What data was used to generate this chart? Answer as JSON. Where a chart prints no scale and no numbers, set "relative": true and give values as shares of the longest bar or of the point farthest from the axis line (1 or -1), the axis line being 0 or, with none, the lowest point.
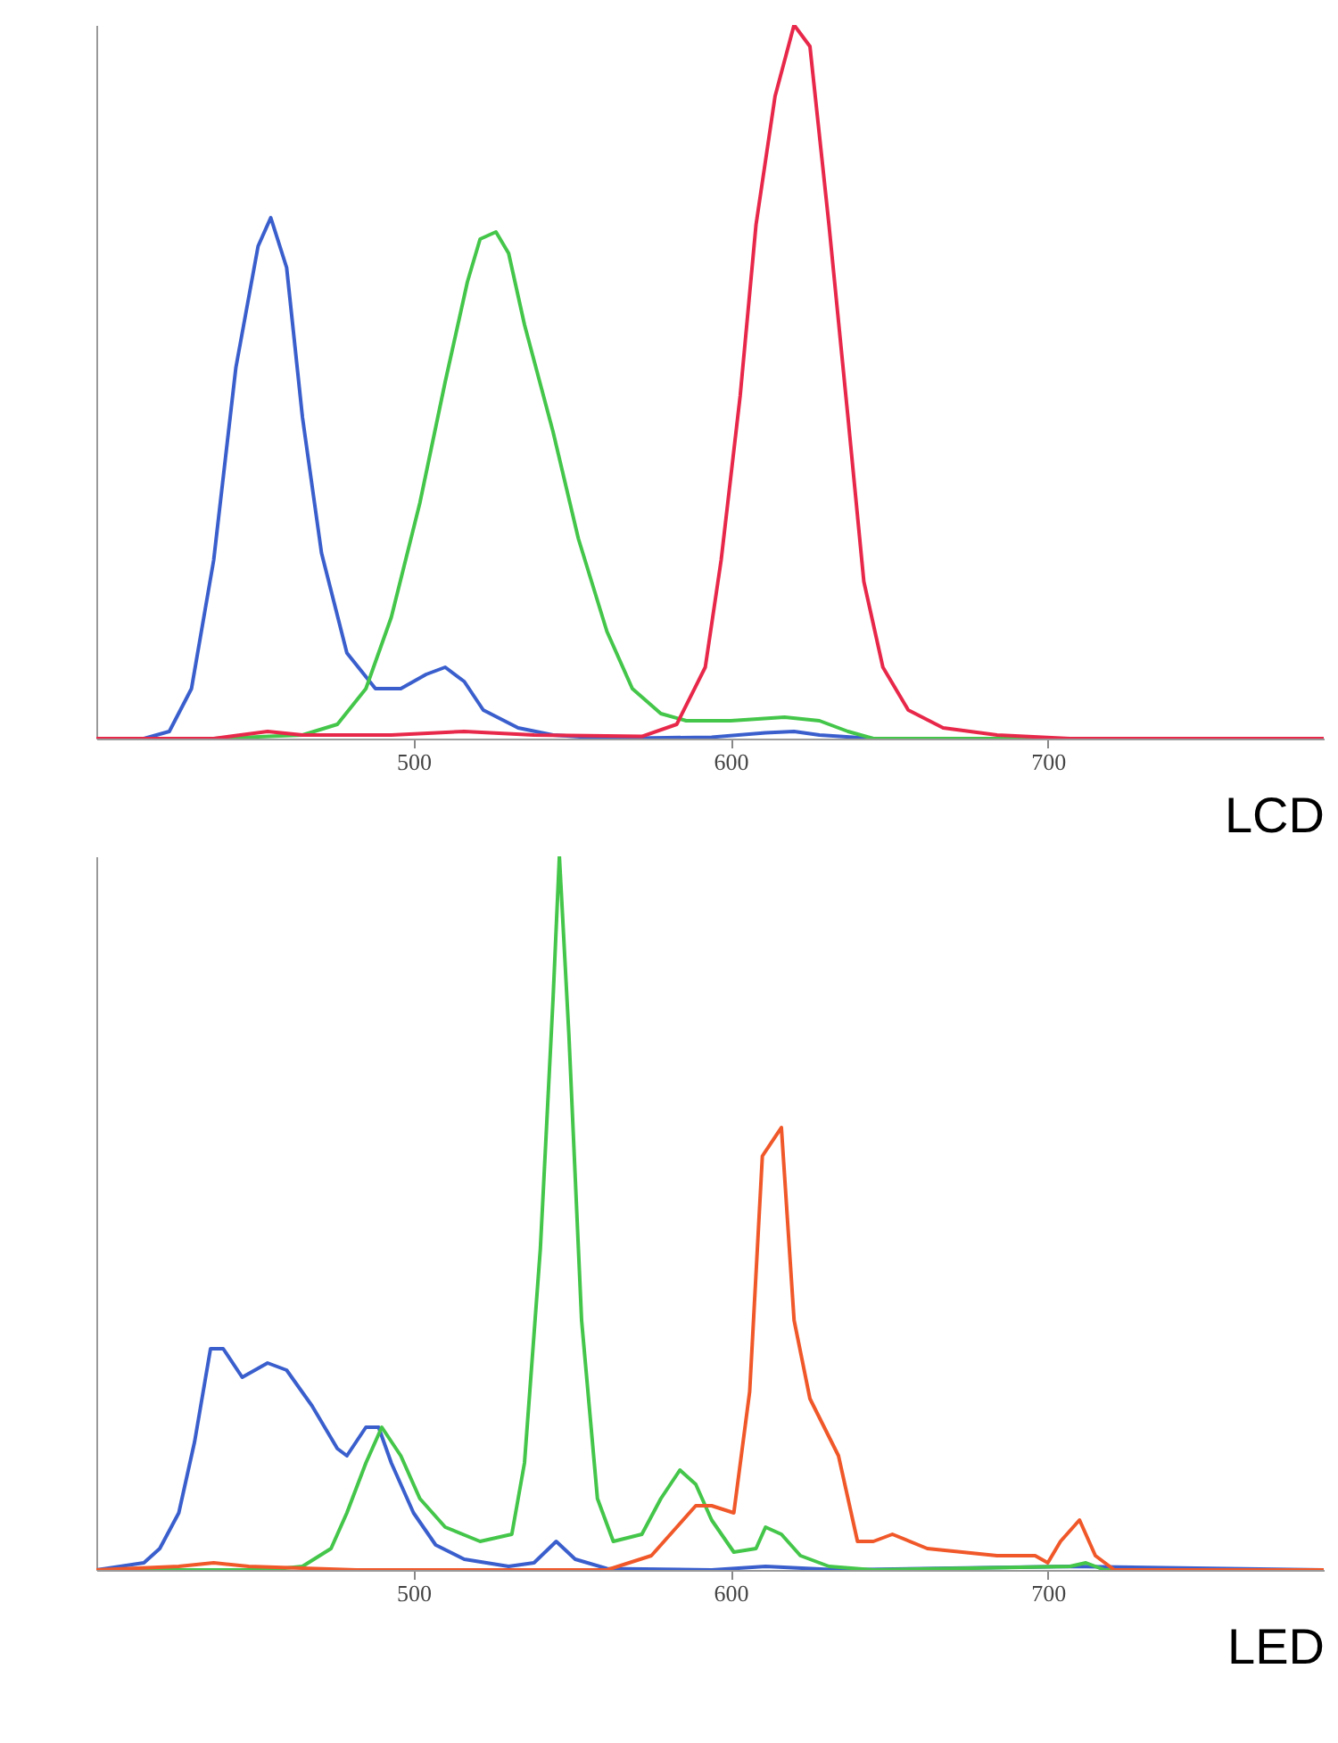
{
  "chart_data": [
    {
      "type": "line",
      "relative": true,
      "xlabel": "LCD",
      "xlim": [
        400,
        787
      ],
      "xticks": [
        500,
        600,
        700
      ],
      "tick_labels": "x",
      "grid": false,
      "legend": false,
      "marker": "none",
      "line_style": "solid",
      "series": [
        {
          "color": "#3a5fcd",
          "x": [
            400,
            415,
            423,
            430,
            437,
            444,
            451,
            455,
            460,
            465,
            471,
            479,
            488,
            496,
            504,
            510,
            516,
            522,
            533,
            544,
            561,
            594,
            611,
            620,
            628,
            645,
            787
          ],
          "values": [
            0,
            0,
            0.01,
            0.07,
            0.25,
            0.52,
            0.69,
            0.73,
            0.66,
            0.45,
            0.26,
            0.12,
            0.07,
            0.07,
            0.09,
            0.1,
            0.08,
            0.04,
            0.015,
            0.005,
            0,
            0.002,
            0.008,
            0.01,
            0.005,
            0,
            0
          ]
        },
        {
          "color": "#44c64a",
          "x": [
            400,
            437,
            465,
            476,
            485,
            493,
            502,
            510,
            517,
            521,
            526,
            530,
            535,
            544,
            552,
            561,
            569,
            578,
            586,
            600,
            617,
            628,
            637,
            645,
            787
          ],
          "values": [
            0,
            0,
            0.005,
            0.02,
            0.07,
            0.17,
            0.33,
            0.5,
            0.64,
            0.7,
            0.71,
            0.68,
            0.58,
            0.43,
            0.28,
            0.15,
            0.07,
            0.035,
            0.025,
            0.025,
            0.03,
            0.025,
            0.01,
            0,
            0
          ]
        },
        {
          "color": "#e8284a",
          "x": [
            400,
            437,
            454,
            465,
            493,
            516,
            538,
            572,
            583,
            592,
            597,
            603,
            608,
            614,
            620,
            625,
            631,
            637,
            642,
            648,
            656,
            667,
            684,
            707,
            787
          ],
          "values": [
            0,
            0,
            0.01,
            0.005,
            0.005,
            0.01,
            0.005,
            0.003,
            0.02,
            0.1,
            0.25,
            0.48,
            0.72,
            0.9,
            1,
            0.97,
            0.72,
            0.45,
            0.22,
            0.1,
            0.04,
            0.015,
            0.005,
            0,
            0
          ]
        }
      ]
    },
    {
      "type": "line",
      "relative": true,
      "xlabel": "LED",
      "xlim": [
        400,
        787
      ],
      "xticks": [
        500,
        600,
        700
      ],
      "tick_labels": "x",
      "grid": false,
      "legend": false,
      "marker": "none",
      "line_style": "solid",
      "series": [
        {
          "color": "#3a5fcd",
          "x": [
            400,
            415,
            420,
            426,
            431,
            436,
            440,
            446,
            454,
            460,
            468,
            476,
            479,
            485,
            489,
            493,
            500,
            507,
            516,
            530,
            538,
            545,
            551,
            561,
            594,
            611,
            634,
            707,
            787
          ],
          "values": [
            0,
            0.01,
            0.03,
            0.08,
            0.18,
            0.31,
            0.31,
            0.27,
            0.29,
            0.28,
            0.23,
            0.17,
            0.16,
            0.2,
            0.2,
            0.15,
            0.08,
            0.035,
            0.015,
            0.005,
            0.01,
            0.04,
            0.015,
            0.002,
            0,
            0.005,
            0,
            0.005,
            0
          ]
        },
        {
          "color": "#44c64a",
          "x": [
            400,
            454,
            465,
            474,
            479,
            485,
            490,
            496,
            502,
            510,
            521,
            531,
            535,
            540,
            544,
            546,
            549,
            553,
            558,
            563,
            572,
            578,
            584,
            589,
            594,
            601,
            608,
            611,
            616,
            622,
            631,
            645,
            707,
            712,
            718,
            787
          ],
          "values": [
            0,
            0,
            0.005,
            0.03,
            0.08,
            0.15,
            0.2,
            0.16,
            0.1,
            0.06,
            0.04,
            0.05,
            0.15,
            0.45,
            0.8,
            1,
            0.75,
            0.35,
            0.1,
            0.04,
            0.05,
            0.1,
            0.14,
            0.12,
            0.07,
            0.025,
            0.03,
            0.06,
            0.05,
            0.02,
            0.005,
            0,
            0.005,
            0.01,
            0,
            0
          ]
        },
        {
          "color": "#f0582a",
          "x": [
            400,
            426,
            437,
            448,
            482,
            561,
            575,
            583,
            589,
            594,
            601,
            606,
            610,
            616,
            620,
            625,
            634,
            640,
            645,
            651,
            662,
            684,
            696,
            700,
            704,
            710,
            715,
            721,
            787
          ],
          "values": [
            0,
            0.005,
            0.01,
            0.005,
            0,
            0,
            0.02,
            0.06,
            0.09,
            0.09,
            0.08,
            0.25,
            0.58,
            0.62,
            0.35,
            0.24,
            0.16,
            0.04,
            0.04,
            0.05,
            0.03,
            0.02,
            0.02,
            0.01,
            0.04,
            0.07,
            0.02,
            0,
            0
          ]
        }
      ]
    }
  ]
}
